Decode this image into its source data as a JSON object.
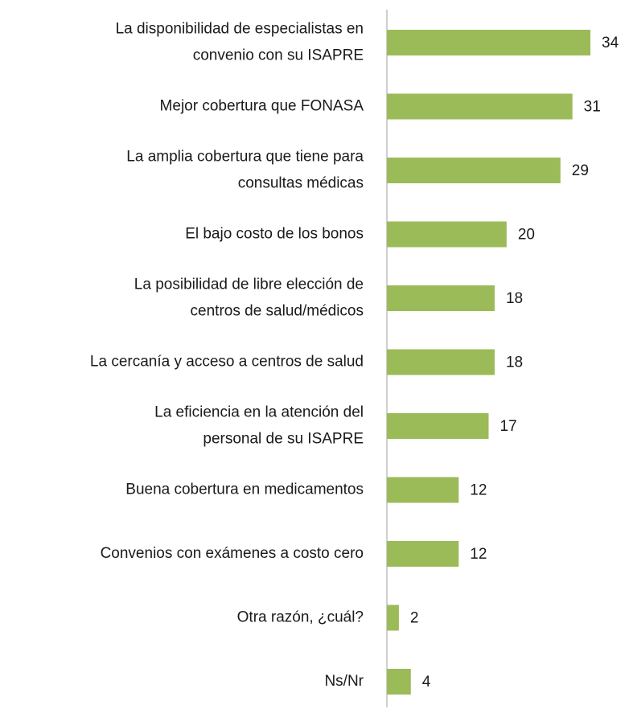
{
  "chart_data": {
    "type": "bar",
    "orientation": "horizontal",
    "color": "#9bbb59",
    "categories": [
      [
        "La disponibilidad de especialistas en",
        "convenio con su ISAPRE"
      ],
      [
        "Mejor cobertura que FONASA"
      ],
      [
        "La amplia cobertura que tiene para",
        "consultas médicas"
      ],
      [
        "El bajo costo de los bonos"
      ],
      [
        "La posibilidad de libre elección de",
        "centros de salud/médicos"
      ],
      [
        "La cercanía y acceso a centros de salud"
      ],
      [
        "La eficiencia en la atención del",
        "personal de su ISAPRE"
      ],
      [
        "Buena cobertura en medicamentos"
      ],
      [
        "Convenios con exámenes a costo cero"
      ],
      [
        "Otra razón, ¿cuál?"
      ],
      [
        "Ns/Nr"
      ]
    ],
    "values": [
      34,
      31,
      29,
      20,
      18,
      18,
      17,
      12,
      12,
      2,
      4
    ]
  }
}
